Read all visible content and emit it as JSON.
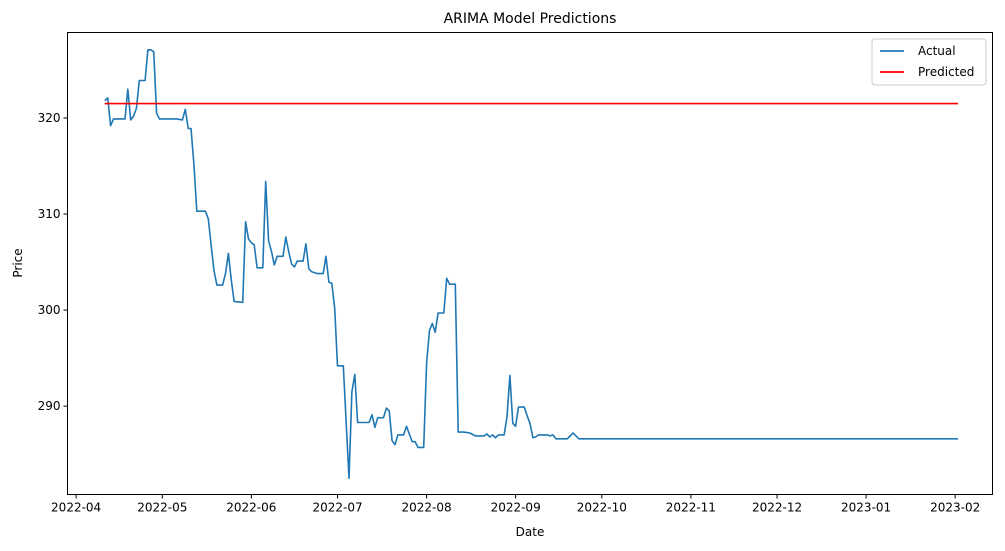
{
  "chart_data": {
    "type": "line",
    "title": "ARIMA Model Predictions",
    "xlabel": "Date",
    "ylabel": "Price",
    "x_ticks": [
      "2022-04",
      "2022-05",
      "2022-06",
      "2022-07",
      "2022-08",
      "2022-09",
      "2022-10",
      "2022-11",
      "2022-12",
      "2023-01",
      "2023-02"
    ],
    "x_tick_dates": [
      "2022-04-01",
      "2022-05-01",
      "2022-06-01",
      "2022-07-01",
      "2022-08-01",
      "2022-09-01",
      "2022-10-01",
      "2022-11-01",
      "2022-12-01",
      "2023-01-01",
      "2023-02-01"
    ],
    "y_ticks": [
      290,
      300,
      310,
      320
    ],
    "xlim": [
      "2022-03-29",
      "2023-02-14"
    ],
    "ylim": [
      280.8,
      328.9
    ],
    "grid": false,
    "legend_position": "top-right",
    "series": [
      {
        "name": "Actual",
        "color": "#1f77b4",
        "points": [
          [
            "2022-04-11",
            321.8
          ],
          [
            "2022-04-12",
            322.1
          ],
          [
            "2022-04-13",
            319.2
          ],
          [
            "2022-04-14",
            319.9
          ],
          [
            "2022-04-15",
            319.9
          ],
          [
            "2022-04-18",
            319.9
          ],
          [
            "2022-04-19",
            323.0
          ],
          [
            "2022-04-20",
            319.8
          ],
          [
            "2022-04-21",
            320.2
          ],
          [
            "2022-04-22",
            321.0
          ],
          [
            "2022-04-23",
            323.9
          ],
          [
            "2022-04-25",
            323.9
          ],
          [
            "2022-04-26",
            327.1
          ],
          [
            "2022-04-27",
            327.1
          ],
          [
            "2022-04-28",
            326.9
          ],
          [
            "2022-04-29",
            320.5
          ],
          [
            "2022-04-30",
            319.9
          ],
          [
            "2022-05-06",
            319.9
          ],
          [
            "2022-05-08",
            319.8
          ],
          [
            "2022-05-09",
            320.9
          ],
          [
            "2022-05-10",
            318.9
          ],
          [
            "2022-05-11",
            318.9
          ],
          [
            "2022-05-12",
            315.2
          ],
          [
            "2022-05-13",
            310.3
          ],
          [
            "2022-05-16",
            310.3
          ],
          [
            "2022-05-17",
            309.5
          ],
          [
            "2022-05-18",
            306.8
          ],
          [
            "2022-05-19",
            304.1
          ],
          [
            "2022-05-20",
            302.6
          ],
          [
            "2022-05-22",
            302.6
          ],
          [
            "2022-05-23",
            303.8
          ],
          [
            "2022-05-24",
            305.9
          ],
          [
            "2022-05-25",
            303.2
          ],
          [
            "2022-05-26",
            300.9
          ],
          [
            "2022-05-29",
            300.8
          ],
          [
            "2022-05-30",
            309.2
          ],
          [
            "2022-05-31",
            307.4
          ],
          [
            "2022-06-01",
            307.0
          ],
          [
            "2022-06-02",
            306.8
          ],
          [
            "2022-06-03",
            304.4
          ],
          [
            "2022-06-05",
            304.4
          ],
          [
            "2022-06-06",
            313.4
          ],
          [
            "2022-06-07",
            307.2
          ],
          [
            "2022-06-08",
            306.1
          ],
          [
            "2022-06-09",
            304.7
          ],
          [
            "2022-06-10",
            305.6
          ],
          [
            "2022-06-12",
            305.6
          ],
          [
            "2022-06-13",
            307.6
          ],
          [
            "2022-06-14",
            306.1
          ],
          [
            "2022-06-15",
            304.8
          ],
          [
            "2022-06-16",
            304.5
          ],
          [
            "2022-06-17",
            305.1
          ],
          [
            "2022-06-19",
            305.1
          ],
          [
            "2022-06-20",
            306.9
          ],
          [
            "2022-06-21",
            304.3
          ],
          [
            "2022-06-22",
            304.0
          ],
          [
            "2022-06-24",
            303.8
          ],
          [
            "2022-06-26",
            303.8
          ],
          [
            "2022-06-27",
            305.6
          ],
          [
            "2022-06-28",
            302.9
          ],
          [
            "2022-06-29",
            302.8
          ],
          [
            "2022-06-30",
            300.2
          ],
          [
            "2022-07-01",
            294.2
          ],
          [
            "2022-07-03",
            294.2
          ],
          [
            "2022-07-05",
            282.5
          ],
          [
            "2022-07-06",
            291.5
          ],
          [
            "2022-07-07",
            293.3
          ],
          [
            "2022-07-08",
            288.3
          ],
          [
            "2022-07-12",
            288.3
          ],
          [
            "2022-07-13",
            289.1
          ],
          [
            "2022-07-14",
            287.8
          ],
          [
            "2022-07-15",
            288.8
          ],
          [
            "2022-07-17",
            288.8
          ],
          [
            "2022-07-18",
            289.8
          ],
          [
            "2022-07-19",
            289.5
          ],
          [
            "2022-07-20",
            286.4
          ],
          [
            "2022-07-21",
            286.0
          ],
          [
            "2022-07-22",
            287.0
          ],
          [
            "2022-07-24",
            287.0
          ],
          [
            "2022-07-25",
            287.9
          ],
          [
            "2022-07-26",
            287.1
          ],
          [
            "2022-07-27",
            286.3
          ],
          [
            "2022-07-28",
            286.3
          ],
          [
            "2022-07-29",
            285.7
          ],
          [
            "2022-07-31",
            285.7
          ],
          [
            "2022-08-01",
            294.5
          ],
          [
            "2022-08-02",
            297.9
          ],
          [
            "2022-08-03",
            298.6
          ],
          [
            "2022-08-04",
            297.7
          ],
          [
            "2022-08-05",
            299.7
          ],
          [
            "2022-08-07",
            299.7
          ],
          [
            "2022-08-08",
            303.3
          ],
          [
            "2022-08-09",
            302.7
          ],
          [
            "2022-08-11",
            302.7
          ],
          [
            "2022-08-12",
            287.3
          ],
          [
            "2022-08-14",
            287.3
          ],
          [
            "2022-08-16",
            287.2
          ],
          [
            "2022-08-18",
            286.9
          ],
          [
            "2022-08-21",
            286.9
          ],
          [
            "2022-08-22",
            287.1
          ],
          [
            "2022-08-23",
            286.8
          ],
          [
            "2022-08-24",
            287.0
          ],
          [
            "2022-08-25",
            286.7
          ],
          [
            "2022-08-26",
            287.0
          ],
          [
            "2022-08-28",
            287.0
          ],
          [
            "2022-08-29",
            288.9
          ],
          [
            "2022-08-30",
            293.2
          ],
          [
            "2022-08-31",
            288.2
          ],
          [
            "2022-09-01",
            287.9
          ],
          [
            "2022-09-02",
            289.9
          ],
          [
            "2022-09-04",
            289.9
          ],
          [
            "2022-09-05",
            289.0
          ],
          [
            "2022-09-06",
            288.2
          ],
          [
            "2022-09-07",
            286.7
          ],
          [
            "2022-09-08",
            286.8
          ],
          [
            "2022-09-09",
            287.0
          ],
          [
            "2022-09-12",
            287.0
          ],
          [
            "2022-09-13",
            286.9
          ],
          [
            "2022-09-14",
            287.0
          ],
          [
            "2022-09-15",
            286.6
          ],
          [
            "2022-09-19",
            286.6
          ],
          [
            "2022-09-21",
            287.2
          ],
          [
            "2022-09-23",
            286.6
          ],
          [
            "2023-02-02",
            286.6
          ]
        ]
      },
      {
        "name": "Predicted",
        "color": "#ff0000",
        "points": [
          [
            "2022-04-11",
            321.5
          ],
          [
            "2023-02-02",
            321.5
          ]
        ]
      }
    ]
  }
}
